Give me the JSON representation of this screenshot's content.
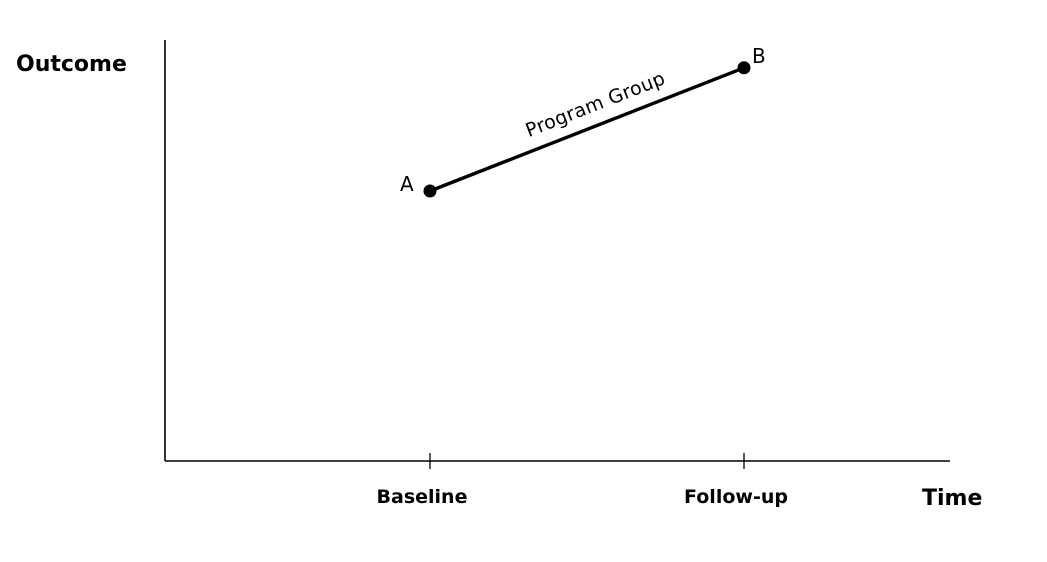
{
  "chart_data": {
    "type": "line",
    "title": "",
    "ylabel": "Outcome",
    "xlabel": "Time",
    "categories": [
      "Baseline",
      "Follow-up"
    ],
    "series": [
      {
        "name": "Program Group",
        "values": [
          0.5,
          0.9
        ],
        "point_labels": [
          "A",
          "B"
        ],
        "color": "#000000"
      }
    ],
    "ylim": [
      0,
      1
    ],
    "grid": false,
    "legend": "none"
  }
}
